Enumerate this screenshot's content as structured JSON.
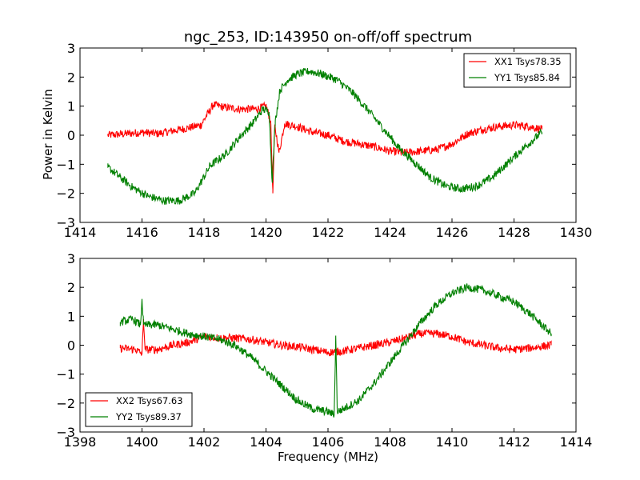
{
  "figure": {
    "title": "ngc_253, ID:143950 on-off/off spectrum",
    "ylabel": "Power in Kelvin",
    "xlabel": "Frequency (MHz)"
  },
  "chart_data": [
    {
      "type": "line",
      "xlim": [
        1414,
        1430
      ],
      "ylim": [
        -3,
        3
      ],
      "xticks": [
        1414,
        1416,
        1418,
        1420,
        1422,
        1424,
        1426,
        1428,
        1430
      ],
      "yticks": [
        -3,
        -2,
        -1,
        0,
        1,
        2,
        3
      ],
      "legend_position": "top-right",
      "series": [
        {
          "name": "XX1 Tsys78.35",
          "color": "#ff0000",
          "x": [
            1414.9,
            1415.5,
            1416.0,
            1416.5,
            1417.0,
            1417.5,
            1417.9,
            1418.3,
            1418.7,
            1419.2,
            1419.7,
            1420.0,
            1420.15,
            1420.22,
            1420.28,
            1420.35,
            1420.42,
            1420.6,
            1421.0,
            1421.5,
            1422.0,
            1422.5,
            1423.0,
            1423.5,
            1424.0,
            1424.5,
            1425.0,
            1425.5,
            1426.0,
            1426.5,
            1427.0,
            1427.5,
            1428.0,
            1428.5,
            1428.9
          ],
          "y": [
            0.0,
            0.05,
            0.1,
            0.05,
            0.15,
            0.25,
            0.35,
            1.05,
            0.95,
            0.9,
            0.9,
            1.0,
            0.5,
            -2.0,
            0.3,
            -0.1,
            -0.6,
            0.4,
            0.3,
            0.1,
            0.0,
            -0.2,
            -0.3,
            -0.4,
            -0.55,
            -0.6,
            -0.55,
            -0.5,
            -0.3,
            0.05,
            0.2,
            0.3,
            0.35,
            0.3,
            0.2
          ]
        },
        {
          "name": "YY1 Tsys85.84",
          "color": "#008000",
          "x": [
            1414.9,
            1415.3,
            1415.7,
            1416.2,
            1416.7,
            1417.2,
            1417.7,
            1418.2,
            1418.7,
            1419.2,
            1419.6,
            1419.9,
            1420.1,
            1420.2,
            1420.3,
            1420.45,
            1420.7,
            1421.0,
            1421.4,
            1421.8,
            1422.3,
            1422.8,
            1423.3,
            1423.8,
            1424.3,
            1424.8,
            1425.3,
            1425.8,
            1426.3,
            1426.8,
            1427.3,
            1427.8,
            1428.3,
            1428.9
          ],
          "y": [
            -1.1,
            -1.45,
            -1.8,
            -2.1,
            -2.25,
            -2.25,
            -2.0,
            -1.05,
            -0.65,
            0.0,
            0.45,
            0.9,
            0.8,
            -1.6,
            0.5,
            1.55,
            1.9,
            2.1,
            2.2,
            2.1,
            1.9,
            1.45,
            0.85,
            0.2,
            -0.45,
            -0.95,
            -1.45,
            -1.75,
            -1.85,
            -1.75,
            -1.45,
            -0.95,
            -0.45,
            0.1
          ]
        }
      ]
    },
    {
      "type": "line",
      "xlim": [
        1398,
        1414
      ],
      "ylim": [
        -3,
        3
      ],
      "xticks": [
        1398,
        1400,
        1402,
        1404,
        1406,
        1408,
        1410,
        1412,
        1414
      ],
      "yticks": [
        -3,
        -2,
        -1,
        0,
        1,
        2,
        3
      ],
      "legend_position": "bottom-left",
      "series": [
        {
          "name": "XX2 Tsys67.63",
          "color": "#ff0000",
          "x": [
            1399.3,
            1399.8,
            1400.0,
            1400.05,
            1400.1,
            1400.5,
            1401.0,
            1401.5,
            1402.0,
            1402.5,
            1403.0,
            1403.5,
            1404.0,
            1404.5,
            1405.0,
            1405.5,
            1406.0,
            1406.5,
            1407.0,
            1407.5,
            1408.0,
            1408.5,
            1409.0,
            1409.5,
            1410.0,
            1410.5,
            1411.0,
            1411.5,
            1412.0,
            1412.5,
            1413.2
          ],
          "y": [
            -0.1,
            -0.15,
            -0.3,
            0.9,
            -0.15,
            -0.15,
            0.0,
            0.1,
            0.3,
            0.25,
            0.25,
            0.2,
            0.1,
            0.0,
            -0.05,
            -0.15,
            -0.25,
            -0.2,
            -0.1,
            0.0,
            0.1,
            0.25,
            0.4,
            0.4,
            0.3,
            0.1,
            0.0,
            -0.1,
            -0.15,
            -0.1,
            0.0
          ]
        },
        {
          "name": "YY2 Tsys89.37",
          "color": "#008000",
          "x": [
            1399.3,
            1399.7,
            1399.95,
            1400.0,
            1400.05,
            1400.5,
            1401.0,
            1401.5,
            1402.0,
            1402.5,
            1403.0,
            1403.5,
            1404.0,
            1404.5,
            1405.0,
            1405.5,
            1406.0,
            1406.2,
            1406.25,
            1406.3,
            1406.5,
            1407.0,
            1407.5,
            1408.0,
            1408.5,
            1409.0,
            1409.5,
            1410.0,
            1410.5,
            1411.0,
            1411.5,
            1412.0,
            1412.5,
            1413.2
          ],
          "y": [
            0.8,
            0.9,
            0.7,
            1.6,
            0.7,
            0.7,
            0.55,
            0.4,
            0.3,
            0.2,
            0.0,
            -0.4,
            -0.9,
            -1.4,
            -1.9,
            -2.2,
            -2.3,
            -2.4,
            0.3,
            -2.3,
            -2.2,
            -1.9,
            -1.3,
            -0.6,
            0.1,
            0.8,
            1.4,
            1.8,
            2.0,
            1.9,
            1.7,
            1.5,
            1.1,
            0.4
          ]
        }
      ]
    }
  ]
}
